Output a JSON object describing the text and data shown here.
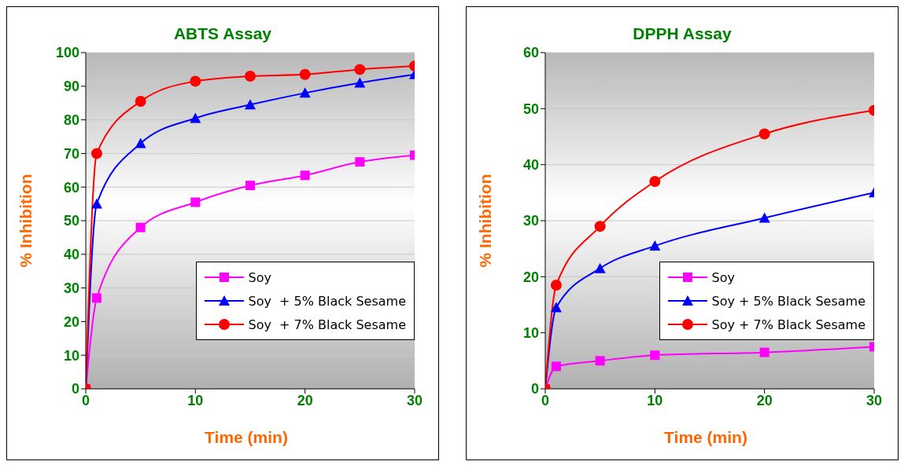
{
  "chart_data": [
    {
      "type": "line",
      "title": "ABTS Assay",
      "xlabel": "Time (min)",
      "ylabel": "% Inhibition",
      "x": [
        0,
        1,
        5,
        10,
        15,
        20,
        25,
        30
      ],
      "xlim": [
        0,
        30
      ],
      "xticks": [
        0,
        10,
        20,
        30
      ],
      "ylim": [
        0,
        100
      ],
      "yticks": [
        0,
        10,
        20,
        30,
        40,
        50,
        60,
        70,
        80,
        90,
        100
      ],
      "grid": "y",
      "legend": "bottom right",
      "line_style": "solid",
      "series": [
        {
          "name": "Soy",
          "color": "#ff00ff",
          "marker": "square",
          "values": [
            0,
            27,
            48,
            55.5,
            60.5,
            63.5,
            67.5,
            69.5
          ]
        },
        {
          "name": "Soy  + 5% Black Sesame",
          "color": "#0000ff",
          "marker": "triangle",
          "values": [
            0,
            55,
            73,
            80.5,
            84.5,
            88,
            91,
            93.5
          ]
        },
        {
          "name": "Soy  + 7% Black Sesame",
          "color": "#ff0000",
          "marker": "circle",
          "values": [
            0,
            70,
            85.5,
            91.5,
            93,
            93.5,
            95,
            96
          ]
        }
      ]
    },
    {
      "type": "line",
      "title": "DPPH Assay",
      "xlabel": "Time (min)",
      "ylabel": "% Inhibition",
      "x": [
        0,
        1,
        5,
        10,
        20,
        30
      ],
      "xlim": [
        0,
        30
      ],
      "xticks": [
        0,
        10,
        20,
        30
      ],
      "ylim": [
        0,
        60
      ],
      "yticks": [
        0,
        10,
        20,
        30,
        40,
        50,
        60
      ],
      "grid": "y",
      "legend": "bottom right",
      "line_style": "solid",
      "series": [
        {
          "name": "Soy",
          "color": "#ff00ff",
          "marker": "square",
          "values": [
            0,
            4,
            5,
            6,
            6.5,
            7.5
          ]
        },
        {
          "name": "Soy + 5% Black Sesame",
          "color": "#0000ff",
          "marker": "triangle",
          "values": [
            0,
            14.5,
            21.5,
            25.5,
            30.5,
            35
          ]
        },
        {
          "name": "Soy + 7% Black Sesame",
          "color": "#ff0000",
          "marker": "circle",
          "values": [
            0,
            18.5,
            29,
            37,
            45.5,
            49.7
          ]
        }
      ]
    }
  ]
}
